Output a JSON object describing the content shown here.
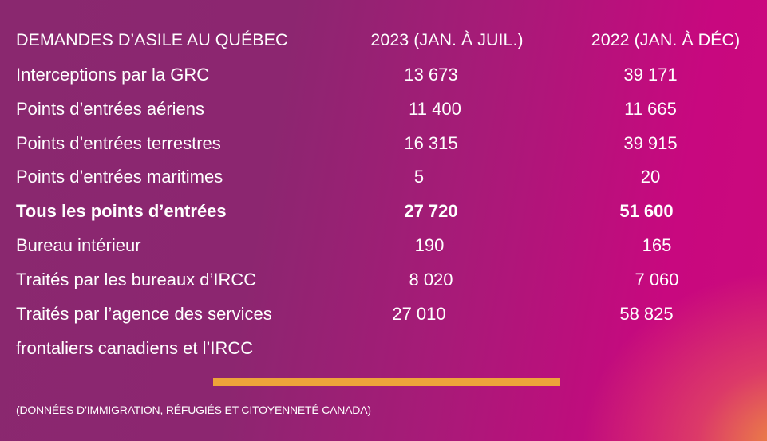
{
  "table": {
    "headers": [
      "DEMANDES D’ASILE AU QUÉBEC",
      "2023 (JAN. À JUIL.)",
      "2022 (JAN. À DÉC)"
    ],
    "rows": [
      {
        "label": "Interceptions par la GRC",
        "v2023": "13 673",
        "v2022": "39 171"
      },
      {
        "label": "Points d’entrées aériens",
        "v2023": "11 400",
        "v2022": "11 665"
      },
      {
        "label": "Points d’entrées terrestres",
        "v2023": "16 315",
        "v2022": "39 915"
      },
      {
        "label": "Points d’entrées maritimes",
        "v2023": "5",
        "v2022": "20"
      },
      {
        "label": "Tous les points d’entrées",
        "v2023": "27 720",
        "v2022": "51 600",
        "bold": true
      },
      {
        "label": "Bureau intérieur",
        "v2023": "190",
        "v2022": "165"
      },
      {
        "label": "Traités par les bureaux d’IRCC",
        "v2023": "8 020",
        "v2022": "7 060"
      },
      {
        "label": "Traités par l’agence des services",
        "label_line2": "frontaliers canadiens et l’IRCC",
        "v2023": "27 010",
        "v2022": "58 825"
      }
    ]
  },
  "footer": {
    "source": "(DONNÉES D’IMMIGRATION, RÉFUGIÉS ET CITOYENNETÉ CANADA)"
  },
  "colors": {
    "background_left": "#8a286f",
    "background_right": "#c8087f",
    "accent_bar": "#eda43a",
    "text": "#ffffff"
  }
}
